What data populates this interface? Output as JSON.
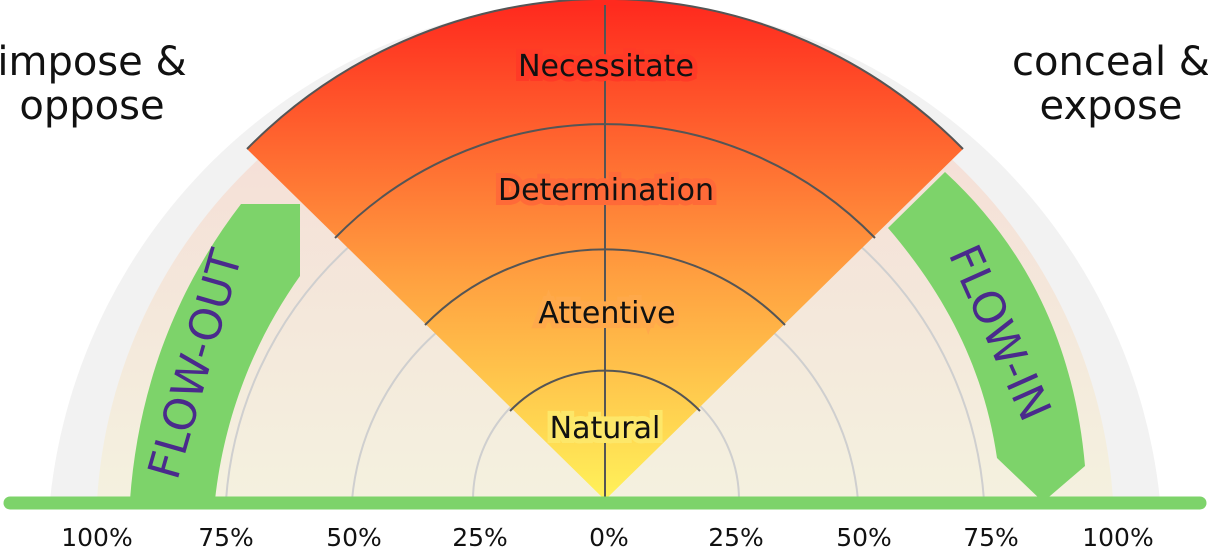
{
  "labels": {
    "top_left": [
      "impose &",
      "oppose"
    ],
    "top_right": [
      "conceal &",
      "expose"
    ]
  },
  "zones": [
    "Natural",
    "Attentive",
    "Determination",
    "Necessitate"
  ],
  "arrows": {
    "left": "FLOW-OUT",
    "right": "FLOW-IN"
  },
  "axis_ticks": [
    "100%",
    "75%",
    "50%",
    "25%",
    "0%",
    "25%",
    "50%",
    "75%",
    "100%"
  ],
  "colors": {
    "baseline": "#7dd36a",
    "arrow_fill": "#7dd36a",
    "arrow_text": "#4a2a8c",
    "sector_top": "#ff2a1e",
    "sector_bottom": "#fff25a",
    "outer_band": "#f2f2f2",
    "inner_bg": "#f4eedc",
    "grid_line": "#555555",
    "faint_arc": "#cfcfcf"
  }
}
